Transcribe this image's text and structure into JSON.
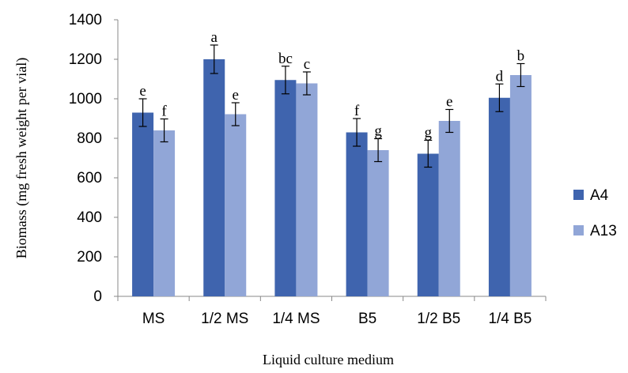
{
  "chart_data": {
    "type": "bar",
    "categories": [
      "MS",
      "1/2 MS",
      "1/4 MS",
      "B5",
      "1/2 B5",
      "1/4 B5"
    ],
    "series": [
      {
        "name": "A4",
        "color": "#3f64ae",
        "values": [
          930,
          1200,
          1095,
          830,
          722,
          1005
        ],
        "errors": [
          70,
          72,
          70,
          70,
          68,
          70
        ],
        "letters": [
          "e",
          "a",
          "bc",
          "f",
          "g",
          "d"
        ]
      },
      {
        "name": "A13",
        "color": "#91a6d7",
        "values": [
          840,
          922,
          1078,
          740,
          888,
          1120
        ],
        "errors": [
          58,
          58,
          58,
          58,
          58,
          58
        ],
        "letters": [
          "f",
          "e",
          "c",
          "g",
          "e",
          "b"
        ]
      }
    ],
    "xlabel": "Liquid culture medium",
    "ylabel": "Biomass (mg fresh weight per vial)",
    "ylim": [
      0,
      1400
    ],
    "yticks": [
      0,
      200,
      400,
      600,
      800,
      1000,
      1200,
      1400
    ],
    "grid": false,
    "legend": "right"
  }
}
